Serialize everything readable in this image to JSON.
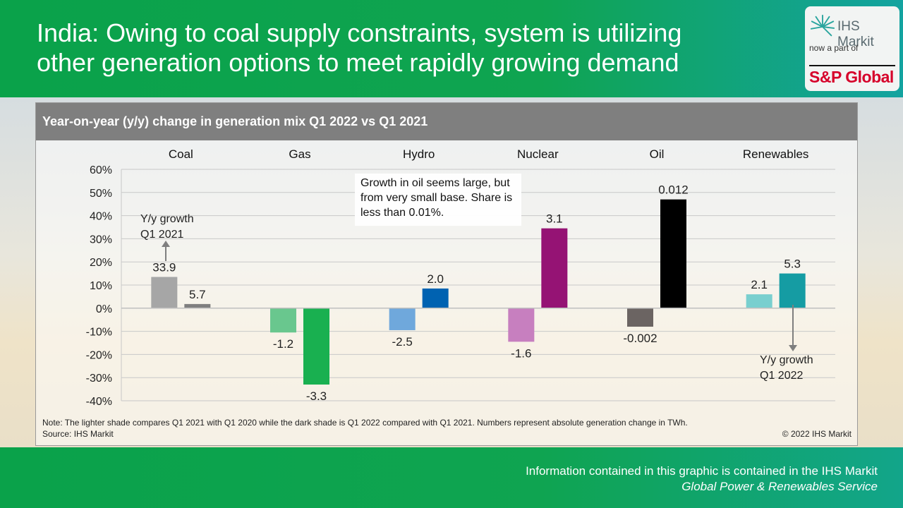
{
  "header": {
    "title": "India: Owing to coal supply constraints, system is utilizing other generation options to meet rapidly growing demand"
  },
  "logo": {
    "brand": "IHS Markit",
    "tagline": "now a part of",
    "parent": "S&P Global"
  },
  "panel": {
    "note": "Note: The lighter shade compares Q1 2021 with Q1 2020 while the dark shade is Q1 2022 compared with Q1 2021. Numbers represent absolute generation change in TWh.",
    "source": "Source: IHS Markit",
    "copyright": "© 2022 IHS Markit"
  },
  "footer": {
    "line1": "Information contained in this graphic is contained in the IHS Markit",
    "line2": "Global Power & Renewables Service"
  },
  "annotations": {
    "callout": "Growth in oil seems large, but from very small base. Share is less than 0.01%.",
    "q1_2021_line1": "Y/y growth",
    "q1_2021_line2": "Q1 2021",
    "q1_2022_line1": "Y/y growth",
    "q1_2022_line2": "Q1 2022"
  },
  "chart_data": {
    "type": "bar",
    "title": "Year-on-year (y/y) change in generation mix Q1 2022 vs Q1 2021",
    "categories": [
      "Coal",
      "Gas",
      "Hydro",
      "Nuclear",
      "Oil",
      "Renewables"
    ],
    "ylim": [
      -40,
      60
    ],
    "yticks": [
      -40,
      -30,
      -20,
      -10,
      0,
      10,
      20,
      30,
      40,
      50,
      60
    ],
    "ytick_labels": [
      "-40%",
      "-30%",
      "-20%",
      "-10%",
      "0%",
      "10%",
      "20%",
      "30%",
      "40%",
      "50%",
      "60%"
    ],
    "grid": true,
    "series": [
      {
        "values": [
          13.5,
          -10.5,
          -9.5,
          -14.5,
          -8.0,
          6.0
        ],
        "data_labels": [
          "33.9",
          "-1.2",
          "-2.5",
          "-1.6",
          "-0.002",
          "2.1"
        ],
        "colors": [
          "#a6a6a6",
          "#69c78e",
          "#6fa8dc",
          "#c77fbf",
          "#6b6462",
          "#79cfcf"
        ]
      },
      {
        "values": [
          1.8,
          -33.0,
          8.5,
          34.5,
          47.0,
          15.0
        ],
        "data_labels": [
          "5.7",
          "-3.3",
          "2.0",
          "3.1",
          "0.012",
          "5.3"
        ],
        "colors": [
          "#7f7f7f",
          "#19b050",
          "#0062b1",
          "#951374",
          "#000000",
          "#159ca3"
        ]
      }
    ]
  }
}
